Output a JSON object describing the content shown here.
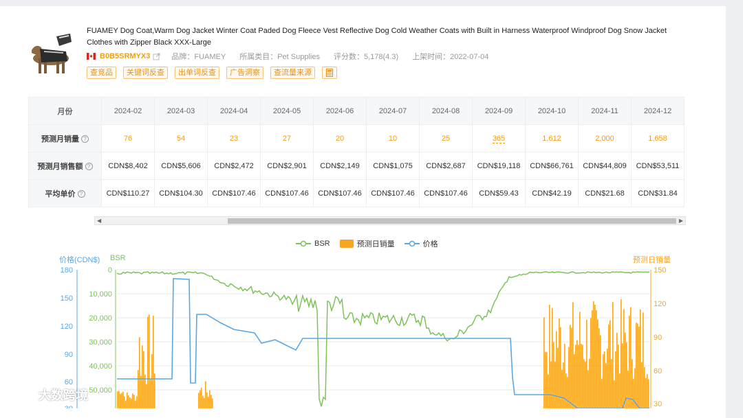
{
  "product": {
    "title": "FUAMEY Dog Coat,Warm Dog Jacket Winter Coat Paded Dog Fleece Vest Reflective Dog Cold Weather Coats with Built in Harness Waterproof Windproof Dog Snow Jacket Clothes with Zipper Black XXX-Large",
    "asin": "B0B5SRMYX3",
    "brand": "品牌：FUAMEY",
    "category": "所属类目：Pet Supplies",
    "rating": "评分数：5,178(4.3)",
    "listed": "上架时间：2022-07-04",
    "marketplace_flag": "canada-flag-icon"
  },
  "tags": [
    "查竞品",
    "关键词反查",
    "出单词反查",
    "广告洞察",
    "查流量来源"
  ],
  "table": {
    "row_labels": [
      "月份",
      "预测月销量",
      "预测月销售额",
      "平均单价"
    ],
    "months": [
      "2024-02",
      "2024-03",
      "2024-04",
      "2024-05",
      "2024-06",
      "2024-07",
      "2024-08",
      "2024-09",
      "2024-10",
      "2024-11",
      "2024-12"
    ],
    "sales": [
      "76",
      "54",
      "23",
      "27",
      "20",
      "10",
      "25",
      "365",
      "1,612",
      "2,000",
      "1,658"
    ],
    "revenue": [
      "CDN$8,402",
      "CDN$5,606",
      "CDN$2,472",
      "CDN$2,901",
      "CDN$2,149",
      "CDN$1,075",
      "CDN$2,687",
      "CDN$19,118",
      "CDN$66,761",
      "CDN$44,809",
      "CDN$53,511"
    ],
    "avg_price": [
      "CDN$110.27",
      "CDN$104.30",
      "CDN$107.46",
      "CDN$107.46",
      "CDN$107.46",
      "CDN$107.46",
      "CDN$107.46",
      "CDN$59.43",
      "CDN$42.19",
      "CDN$21.68",
      "CDN$31.84"
    ]
  },
  "legend": {
    "bsr": "BSR",
    "daily": "预测日销量",
    "price": "价格"
  },
  "axes": {
    "price_title": "价格(CDN$)",
    "bsr_title": "BSR",
    "daily_title": "预测日销量",
    "price_ticks": [
      "180",
      "150",
      "120",
      "90",
      "60",
      "30"
    ],
    "bsr_ticks": [
      "0",
      "10,000",
      "20,000",
      "30,000",
      "40,000",
      "50,000"
    ],
    "daily_ticks": [
      "150",
      "120",
      "90",
      "60",
      "30"
    ]
  },
  "colors": {
    "bsr": "#7cc35a",
    "daily": "#f5a623",
    "price": "#5aa7e4",
    "orange": "#f39c12"
  },
  "chart_data": {
    "type": "line",
    "series": [
      {
        "name": "BSR",
        "axis": "bsr",
        "y_range": [
          0,
          50000
        ]
      },
      {
        "name": "预测日销量",
        "axis": "daily",
        "type": "bar",
        "y_range": [
          0,
          150
        ]
      },
      {
        "name": "价格",
        "axis": "price",
        "y_range": [
          30,
          180
        ]
      }
    ]
  },
  "watermark": "大数跨境"
}
